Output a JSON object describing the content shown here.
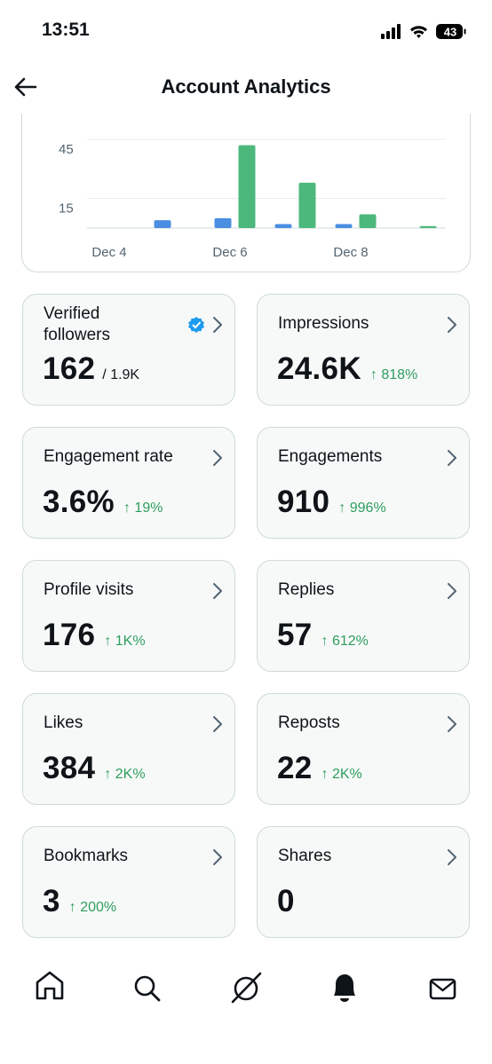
{
  "status_bar": {
    "time": "13:51",
    "battery": "43"
  },
  "header": {
    "title": "Account Analytics"
  },
  "chart_data": {
    "type": "bar",
    "categories": [
      "Dec 4",
      null,
      "Dec 6",
      null,
      "Dec 8",
      null
    ],
    "series": [
      {
        "color": "#4a8fe2",
        "values": [
          0,
          4,
          5,
          2,
          2,
          0
        ]
      },
      {
        "color": "#4db87c",
        "values": [
          0,
          0,
          42,
          23,
          7,
          1
        ]
      }
    ],
    "ylim": [
      0,
      54
    ],
    "yticks": [
      15,
      45
    ],
    "grid": true
  },
  "cards": [
    {
      "label": "Verified followers",
      "value": "162",
      "total": "/ 1.9K"
    },
    {
      "label": "Impressions",
      "value": "24.6K",
      "change": "↑ 818%"
    },
    {
      "label": "Engagement rate",
      "value": "3.6%",
      "change": "↑ 19%"
    },
    {
      "label": "Engagements",
      "value": "910",
      "change": "↑ 996%"
    },
    {
      "label": "Profile visits",
      "value": "176",
      "change": "↑ 1K%"
    },
    {
      "label": "Replies",
      "value": "57",
      "change": "↑ 612%"
    },
    {
      "label": "Likes",
      "value": "384",
      "change": "↑ 2K%"
    },
    {
      "label": "Reposts",
      "value": "22",
      "change": "↑ 2K%"
    },
    {
      "label": "Bookmarks",
      "value": "3",
      "change": "↑ 200%"
    },
    {
      "label": "Shares",
      "value": "0"
    }
  ]
}
